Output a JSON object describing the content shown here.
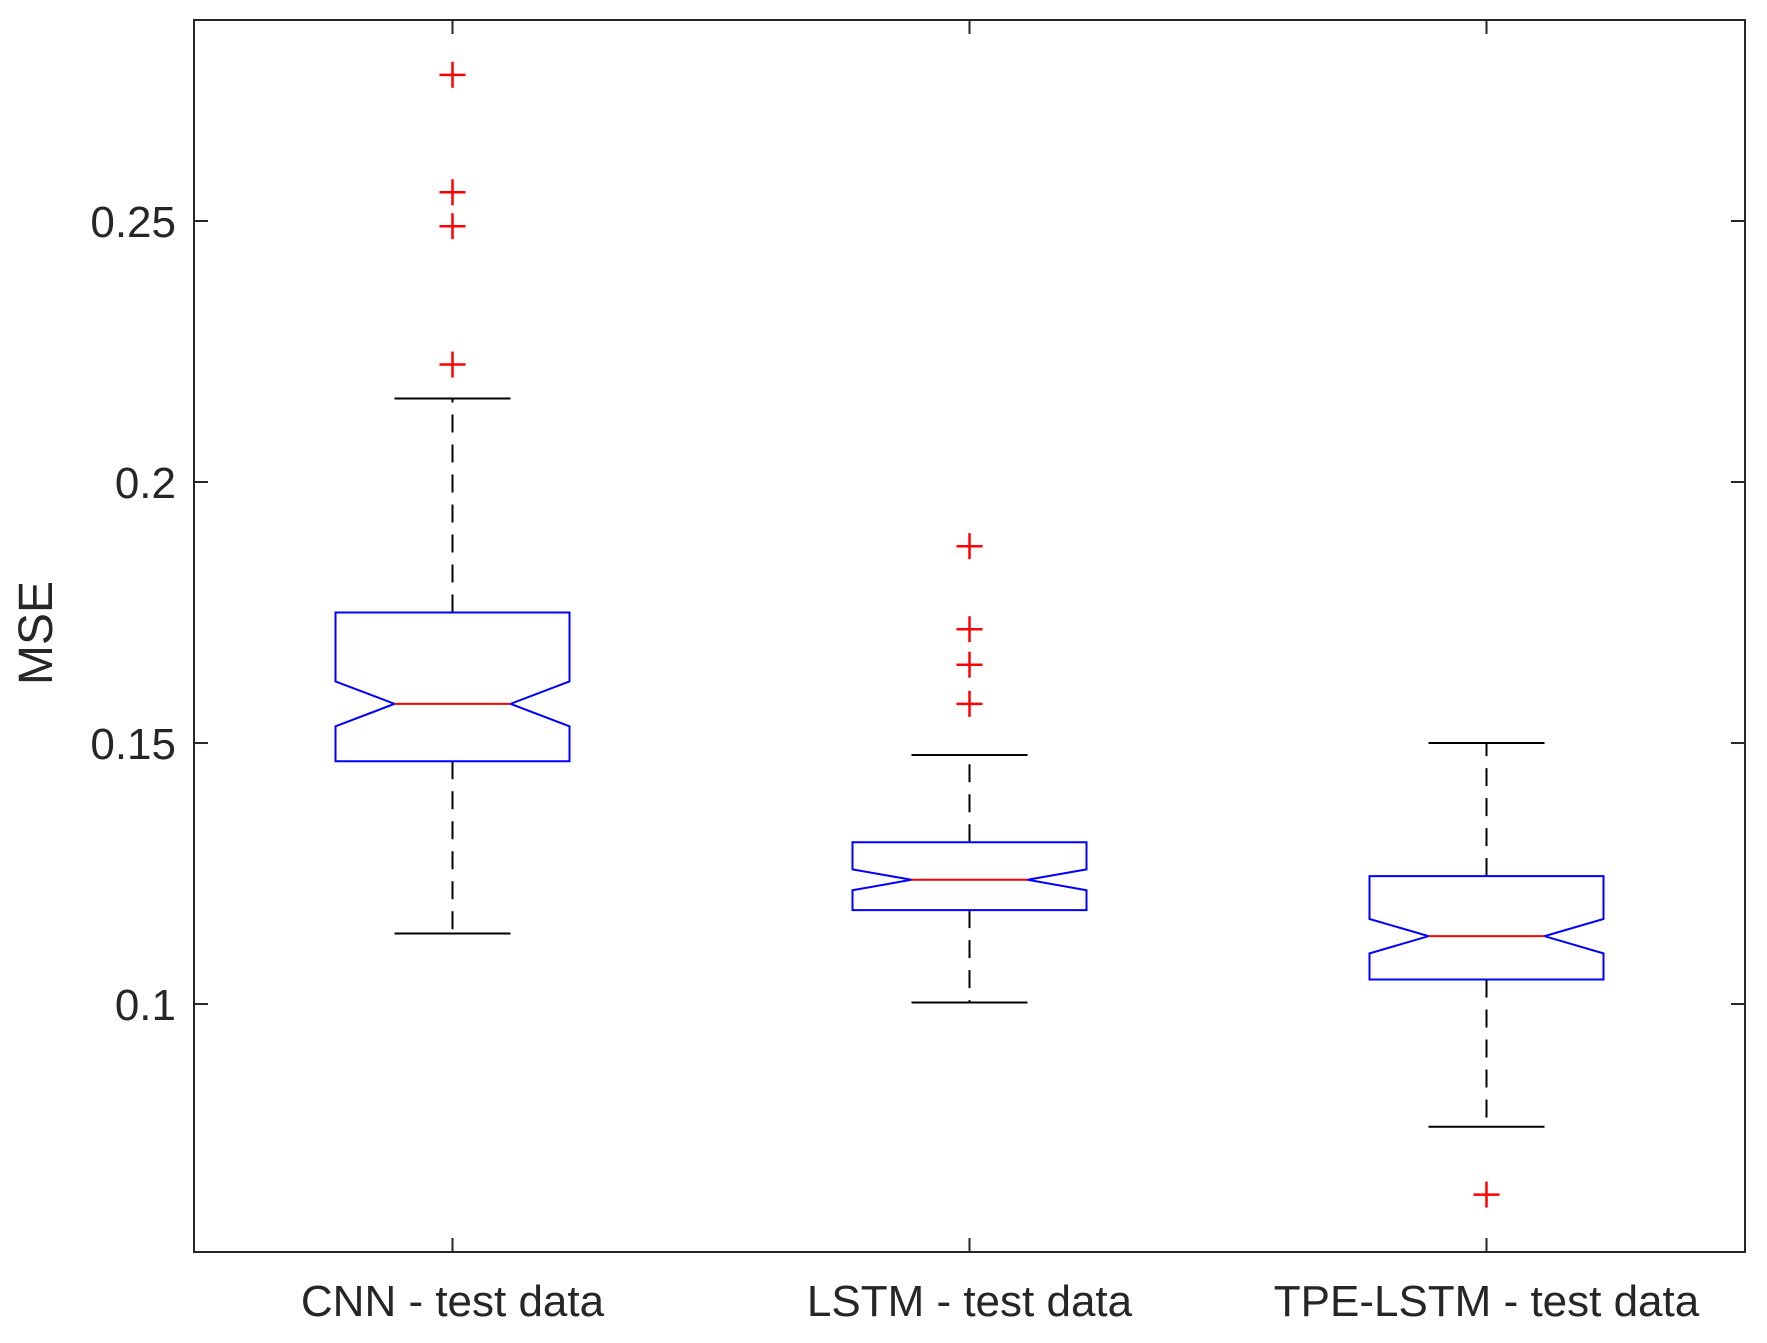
{
  "chart_data": {
    "type": "boxplot",
    "title": "",
    "xlabel": "",
    "ylabel": "MSE",
    "ylim": [
      0.0525,
      0.2885
    ],
    "yticks": [
      0.1,
      0.15,
      0.2,
      0.25
    ],
    "ytick_labels": [
      "0.1",
      "0.15",
      "0.2",
      "0.25"
    ],
    "notched": true,
    "grid": false,
    "categories": [
      "CNN - test data",
      "LSTM - test data",
      "TPE-LSTM - test data"
    ],
    "boxes": [
      {
        "category": "CNN - test data",
        "whisker_low": 0.1135,
        "q1": 0.1465,
        "median": 0.1575,
        "q3": 0.175,
        "whisker_high": 0.216,
        "notch_low": 0.1532,
        "notch_high": 0.1618,
        "outliers": [
          0.278,
          0.2555,
          0.249,
          0.2225
        ]
      },
      {
        "category": "LSTM - test data",
        "whisker_low": 0.1003,
        "q1": 0.118,
        "median": 0.1238,
        "q3": 0.131,
        "whisker_high": 0.1477,
        "notch_low": 0.1218,
        "notch_high": 0.1258,
        "outliers": [
          0.1877,
          0.1718,
          0.165,
          0.1575
        ]
      },
      {
        "category": "TPE-LSTM - test data",
        "whisker_low": 0.0765,
        "q1": 0.1047,
        "median": 0.113,
        "q3": 0.1245,
        "whisker_high": 0.15,
        "notch_low": 0.1097,
        "notch_high": 0.1163,
        "outliers": [
          0.0635
        ]
      }
    ],
    "colors": {
      "box": "#0000ff",
      "median": "#ff0000",
      "whisker": "#000000",
      "outlier": "#ff0000",
      "axis": "#262626"
    }
  }
}
